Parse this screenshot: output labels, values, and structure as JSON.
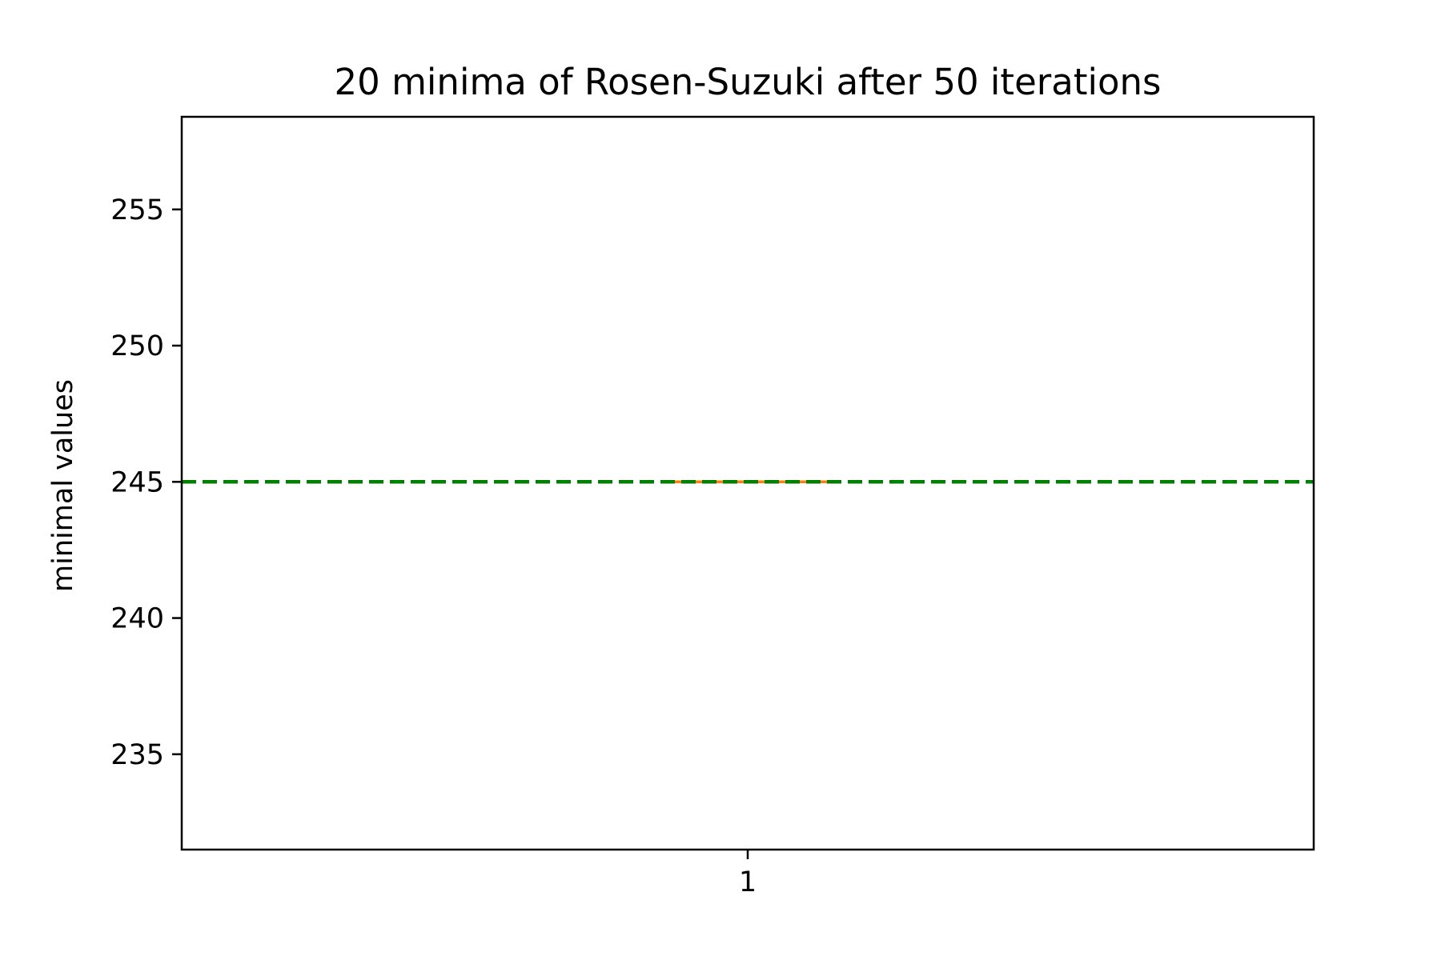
{
  "chart_data": {
    "type": "box",
    "title": "20 minima of Rosen-Suzuki after 50 iterations",
    "xlabel": "",
    "ylabel": "minimal values",
    "categories": [
      "1"
    ],
    "ylim": [
      231.5,
      258.4
    ],
    "y_ticks": [
      235,
      240,
      245,
      250,
      255
    ],
    "x_ticks": [
      "1"
    ],
    "grid": false,
    "boxes": [
      {
        "category": "1",
        "q1": 245,
        "median": 245,
        "q3": 245,
        "whisker_low": 245,
        "whisker_high": 245
      }
    ],
    "reference_line": {
      "y": 245,
      "style": "dashed",
      "color": "#008000"
    },
    "median_color": "#ff7f0e",
    "box_color": "#000000"
  }
}
